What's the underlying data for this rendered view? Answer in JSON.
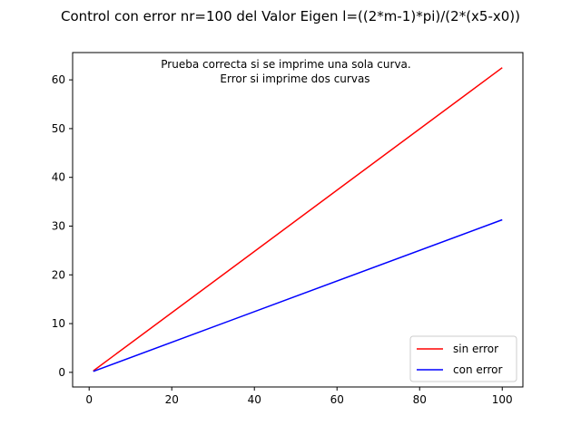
{
  "chart_data": {
    "type": "line",
    "title": "Control con error nr=100 del Valor Eigen l=((2*m-1)*pi)/(2*(x5-x0))",
    "annotation": [
      "Prueba correcta si se imprime una sola curva.",
      "Error si imprime dos curvas"
    ],
    "xlabel": "",
    "ylabel": "",
    "xlim": [
      -4,
      105
    ],
    "ylim": [
      -3.0,
      65.6
    ],
    "xticks": [
      0,
      20,
      40,
      60,
      80,
      100
    ],
    "yticks": [
      0,
      10,
      20,
      30,
      40,
      50,
      60
    ],
    "grid": false,
    "legend_position": "lower-right",
    "series": [
      {
        "name": "sin error",
        "color": "#ff0000",
        "x": [
          1,
          100
        ],
        "y": [
          0.3,
          62.5
        ]
      },
      {
        "name": "con error",
        "color": "#0000ff",
        "x": [
          1,
          100
        ],
        "y": [
          0.2,
          31.3
        ]
      }
    ]
  }
}
